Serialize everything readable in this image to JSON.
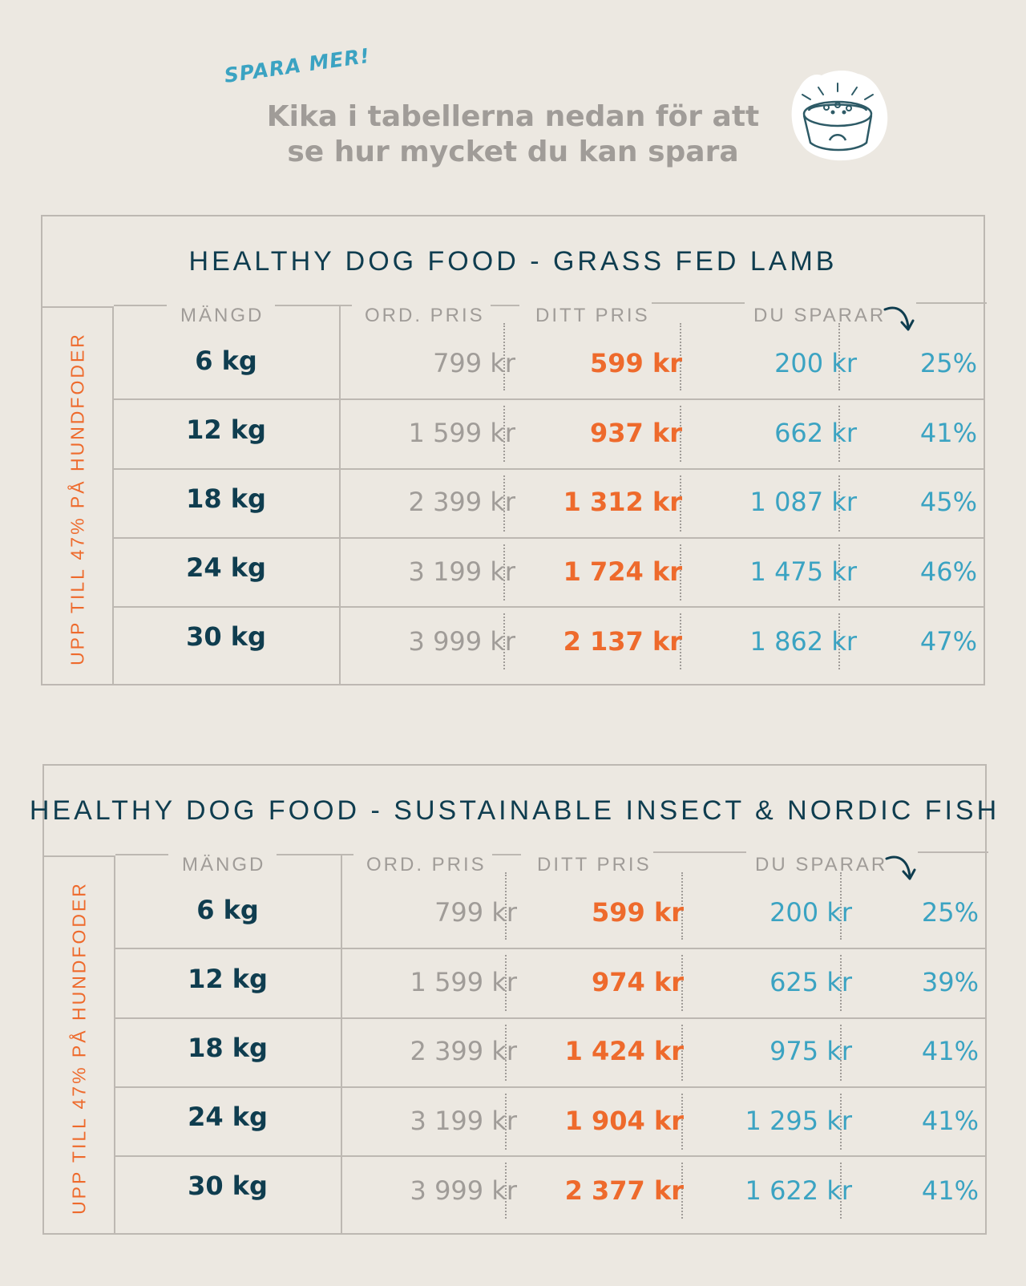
{
  "header": {
    "tag": "SPARA MER!",
    "headline_line1": "Kika i tabellerna nedan för att",
    "headline_line2": "se hur mycket du kan spara",
    "icon": "dog-food-bowl-icon"
  },
  "columns": {
    "quantity": "MÄNGD",
    "ord_price": "ORD. PRIS",
    "your_price": "DITT PRIS",
    "you_save": "DU SPARAR"
  },
  "side_label": "UPP TILL 47% PÅ HUNDFODER",
  "tables": [
    {
      "title": "HEALTHY DOG FOOD - GRASS FED LAMB",
      "rows": [
        {
          "qty": "6 kg",
          "ord": "799 kr",
          "ditt": "599 kr",
          "save": "200 kr",
          "pct": "25%"
        },
        {
          "qty": "12 kg",
          "ord": "1 599 kr",
          "ditt": "937 kr",
          "save": "662 kr",
          "pct": "41%"
        },
        {
          "qty": "18 kg",
          "ord": "2 399 kr",
          "ditt": "1 312 kr",
          "save": "1 087 kr",
          "pct": "45%"
        },
        {
          "qty": "24 kg",
          "ord": "3 199 kr",
          "ditt": "1 724 kr",
          "save": "1 475 kr",
          "pct": "46%"
        },
        {
          "qty": "30 kg",
          "ord": "3 999 kr",
          "ditt": "2 137 kr",
          "save": "1 862 kr",
          "pct": "47%"
        }
      ]
    },
    {
      "title": "HEALTHY DOG FOOD - SUSTAINABLE INSECT & NORDIC FISH",
      "rows": [
        {
          "qty": "6 kg",
          "ord": "799 kr",
          "ditt": "599 kr",
          "save": "200 kr",
          "pct": "25%"
        },
        {
          "qty": "12 kg",
          "ord": "1 599 kr",
          "ditt": "974 kr",
          "save": "625 kr",
          "pct": "39%"
        },
        {
          "qty": "18 kg",
          "ord": "2 399 kr",
          "ditt": "1 424 kr",
          "save": "975 kr",
          "pct": "41%"
        },
        {
          "qty": "24 kg",
          "ord": "3 199 kr",
          "ditt": "1 904 kr",
          "save": "1 295 kr",
          "pct": "41%"
        },
        {
          "qty": "30 kg",
          "ord": "3 999 kr",
          "ditt": "2 377 kr",
          "save": "1 622 kr",
          "pct": "41%"
        }
      ]
    }
  ],
  "colors": {
    "background": "#ECE8E1",
    "navy": "#0F3D4F",
    "orange": "#EE6A2C",
    "teal": "#3BA3C2",
    "grey": "#A09C98"
  }
}
